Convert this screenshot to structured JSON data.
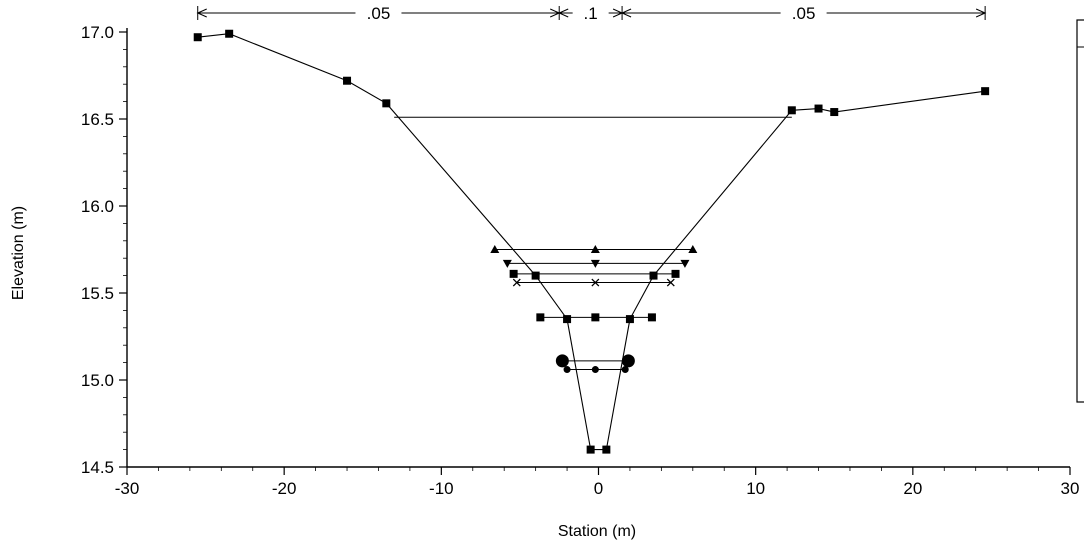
{
  "chart_data": {
    "type": "line",
    "xlabel": "Station (m)",
    "ylabel": "Elevation (m)",
    "xlim": [
      -30,
      30
    ],
    "ylim": [
      14.5,
      17.0
    ],
    "x_ticks": [
      -30,
      -20,
      -10,
      0,
      10,
      20,
      30
    ],
    "x_tick_labels": [
      "-30",
      "-20",
      "-10",
      "0",
      "10",
      "20",
      "30"
    ],
    "y_ticks": [
      14.5,
      15.0,
      15.5,
      16.0,
      16.5,
      17.0
    ],
    "y_tick_labels": [
      "14.5",
      "15.0",
      "15.5",
      "16.0",
      "16.5",
      "17.0"
    ],
    "grid": false,
    "legend": "right",
    "series": [
      {
        "marker": "square",
        "x": [
          -25.5,
          -23.5,
          -16,
          -13.5,
          -4,
          -2,
          -0.5,
          0.5,
          2,
          3.5,
          12.3,
          14,
          15,
          24.6
        ],
        "y": [
          16.97,
          16.99,
          16.72,
          16.59,
          15.6,
          15.35,
          14.6,
          14.6,
          15.35,
          15.6,
          16.55,
          16.56,
          16.54,
          16.66
        ]
      }
    ],
    "water_levels": [
      {
        "marker": "triangle-up",
        "elevation": 15.75,
        "x": [
          -6.6,
          -0.2,
          6.0
        ]
      },
      {
        "marker": "triangle-down",
        "elevation": 15.67,
        "x": [
          -5.8,
          -0.2,
          5.5
        ]
      },
      {
        "marker": "square",
        "elevation": 15.61,
        "x": [
          -5.4,
          4.9
        ]
      },
      {
        "marker": "x",
        "elevation": 15.56,
        "x": [
          -5.2,
          -0.2,
          4.6
        ]
      },
      {
        "marker": "square",
        "elevation": 15.36,
        "x": [
          -3.7,
          -0.2,
          3.4
        ]
      },
      {
        "marker": "circle-large",
        "elevation": 15.11,
        "x": [
          -2.3,
          1.9
        ]
      },
      {
        "marker": "circle-small",
        "elevation": 15.06,
        "x": [
          -2.0,
          -0.2,
          1.7
        ]
      },
      {
        "marker": "none",
        "elevation": 16.51,
        "x": [
          -13.0,
          12.3
        ]
      }
    ],
    "roughness_zones": [
      {
        "label": ".05",
        "from": -25.5,
        "to": -2.5
      },
      {
        "label": ".1",
        "from": -2.5,
        "to": 1.5
      },
      {
        "label": ".05",
        "from": 1.5,
        "to": 24.6
      }
    ]
  }
}
